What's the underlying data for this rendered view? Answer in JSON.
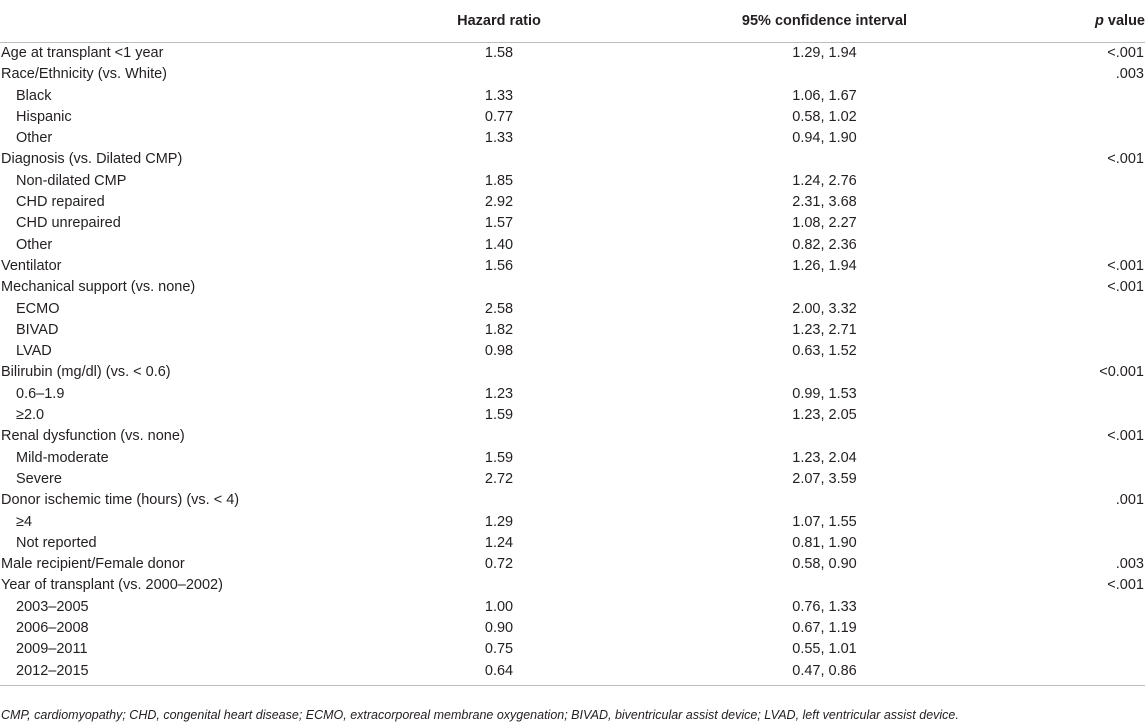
{
  "table": {
    "headers": {
      "label": "",
      "hazard_ratio": "Hazard ratio",
      "ci": "95% confidence interval",
      "p_italic": "p",
      "p_rest": " value"
    },
    "rows": [
      {
        "label": "Age at transplant <1 year",
        "indent": false,
        "hr": "1.58",
        "ci": "1.29, 1.94",
        "p": "<.001"
      },
      {
        "label": "Race/Ethnicity (vs. White)",
        "indent": false,
        "hr": "",
        "ci": "",
        "p": ".003"
      },
      {
        "label": "Black",
        "indent": true,
        "hr": "1.33",
        "ci": "1.06, 1.67",
        "p": ""
      },
      {
        "label": "Hispanic",
        "indent": true,
        "hr": "0.77",
        "ci": "0.58, 1.02",
        "p": ""
      },
      {
        "label": "Other",
        "indent": true,
        "hr": "1.33",
        "ci": "0.94, 1.90",
        "p": ""
      },
      {
        "label": "Diagnosis (vs. Dilated CMP)",
        "indent": false,
        "hr": "",
        "ci": "",
        "p": "<.001"
      },
      {
        "label": "Non-dilated CMP",
        "indent": true,
        "hr": "1.85",
        "ci": "1.24, 2.76",
        "p": ""
      },
      {
        "label": "CHD repaired",
        "indent": true,
        "hr": "2.92",
        "ci": "2.31, 3.68",
        "p": ""
      },
      {
        "label": "CHD unrepaired",
        "indent": true,
        "hr": "1.57",
        "ci": "1.08, 2.27",
        "p": ""
      },
      {
        "label": "Other",
        "indent": true,
        "hr": "1.40",
        "ci": "0.82, 2.36",
        "p": ""
      },
      {
        "label": "Ventilator",
        "indent": false,
        "hr": "1.56",
        "ci": "1.26, 1.94",
        "p": "<.001"
      },
      {
        "label": "Mechanical support (vs. none)",
        "indent": false,
        "hr": "",
        "ci": "",
        "p": "<.001"
      },
      {
        "label": "ECMO",
        "indent": true,
        "hr": "2.58",
        "ci": "2.00, 3.32",
        "p": ""
      },
      {
        "label": "BIVAD",
        "indent": true,
        "hr": "1.82",
        "ci": "1.23, 2.71",
        "p": ""
      },
      {
        "label": "LVAD",
        "indent": true,
        "hr": "0.98",
        "ci": "0.63, 1.52",
        "p": ""
      },
      {
        "label": "Bilirubin (mg/dl) (vs. < 0.6)",
        "indent": false,
        "hr": "",
        "ci": "",
        "p": "<0.001"
      },
      {
        "label": "0.6–1.9",
        "indent": true,
        "hr": "1.23",
        "ci": "0.99, 1.53",
        "p": ""
      },
      {
        "label": "≥2.0",
        "indent": true,
        "hr": "1.59",
        "ci": "1.23, 2.05",
        "p": ""
      },
      {
        "label": "Renal dysfunction (vs. none)",
        "indent": false,
        "hr": "",
        "ci": "",
        "p": "<.001"
      },
      {
        "label": "Mild-moderate",
        "indent": true,
        "hr": "1.59",
        "ci": "1.23, 2.04",
        "p": ""
      },
      {
        "label": "Severe",
        "indent": true,
        "hr": "2.72",
        "ci": "2.07, 3.59",
        "p": ""
      },
      {
        "label": "Donor ischemic time (hours) (vs. < 4)",
        "indent": false,
        "hr": "",
        "ci": "",
        "p": ".001"
      },
      {
        "label": "≥4",
        "indent": true,
        "hr": "1.29",
        "ci": "1.07, 1.55",
        "p": ""
      },
      {
        "label": "Not reported",
        "indent": true,
        "hr": "1.24",
        "ci": "0.81, 1.90",
        "p": ""
      },
      {
        "label": "Male recipient/Female donor",
        "indent": false,
        "hr": "0.72",
        "ci": "0.58, 0.90",
        "p": ".003"
      },
      {
        "label": "Year of transplant (vs. 2000–2002)",
        "indent": false,
        "hr": "",
        "ci": "",
        "p": "<.001"
      },
      {
        "label": "2003–2005",
        "indent": true,
        "hr": "1.00",
        "ci": "0.76, 1.33",
        "p": ""
      },
      {
        "label": "2006–2008",
        "indent": true,
        "hr": "0.90",
        "ci": "0.67, 1.19",
        "p": ""
      },
      {
        "label": "2009–2011",
        "indent": true,
        "hr": "0.75",
        "ci": "0.55, 1.01",
        "p": ""
      },
      {
        "label": "2012–2015",
        "indent": true,
        "hr": "0.64",
        "ci": "0.47, 0.86",
        "p": ""
      }
    ]
  },
  "footnote": "CMP, cardiomyopathy; CHD, congenital heart disease; ECMO, extracorporeal membrane oxygenation; BIVAD, biventricular assist device; LVAD, left ventricular assist device."
}
